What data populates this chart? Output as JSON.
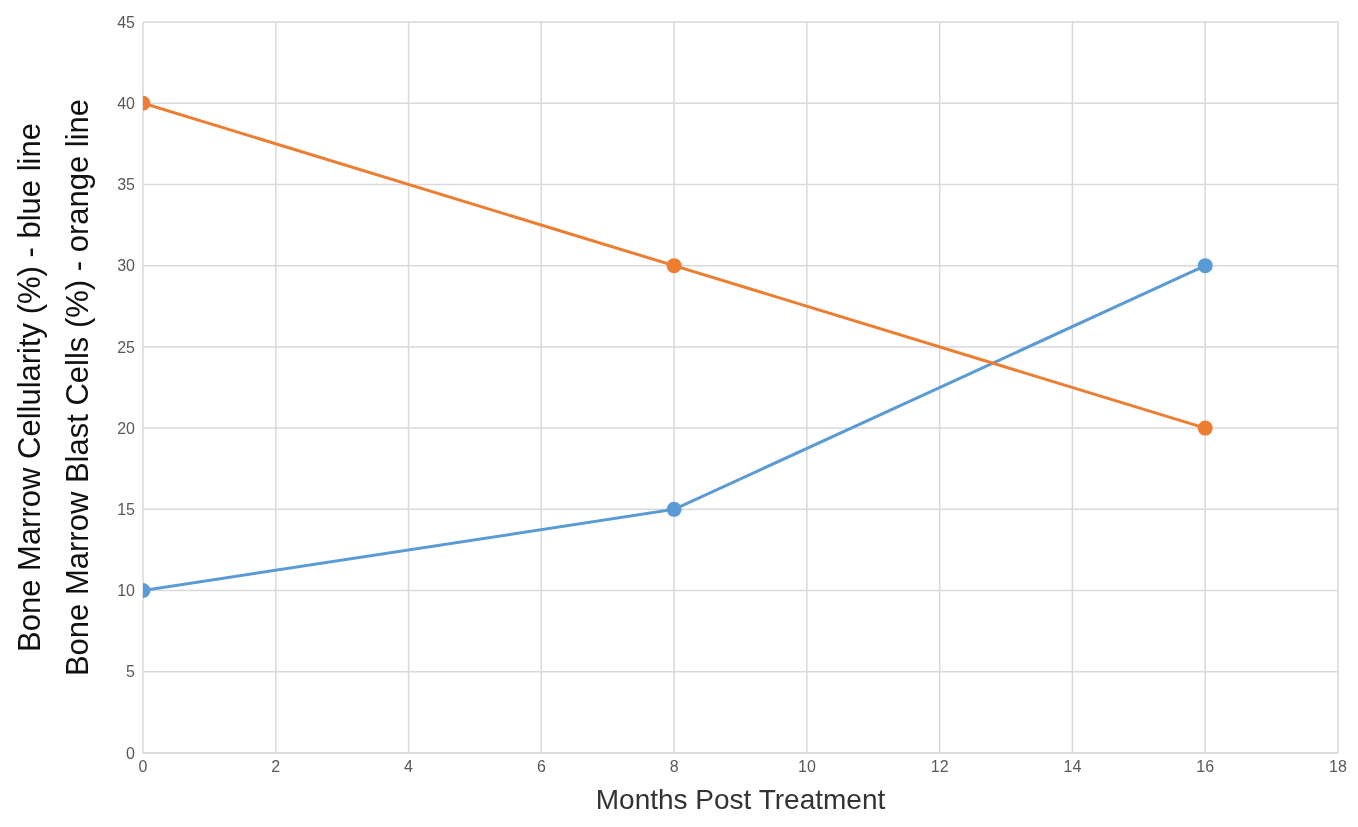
{
  "chart_data": {
    "type": "line",
    "xlabel": "Months Post Treatment",
    "ylabel": "Bone Marrow Cellularity (%)  - blue line\nBone Marrow Blast Cells (%)  - orange line",
    "x": [
      0,
      8,
      16
    ],
    "series": [
      {
        "color": "#5b9bd5",
        "values": [
          10,
          15,
          30
        ]
      },
      {
        "color": "#ed7d31",
        "values": [
          40,
          30,
          20
        ]
      }
    ],
    "xlim": [
      0,
      18
    ],
    "xticks": [
      0,
      2,
      4,
      6,
      8,
      10,
      12,
      14,
      16,
      18
    ],
    "ylim": [
      0,
      45
    ],
    "yticks": [
      0,
      5,
      10,
      15,
      20,
      25,
      30,
      35,
      40,
      45
    ],
    "grid": true,
    "legend": false,
    "marker": "circle",
    "line_style": "solid"
  }
}
